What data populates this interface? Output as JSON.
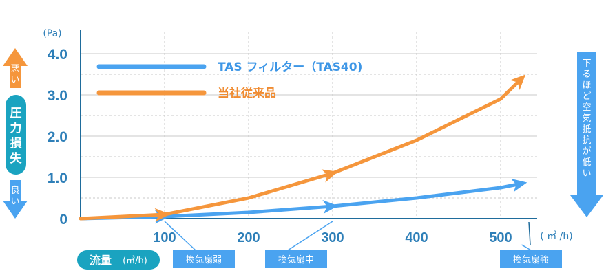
{
  "chart_data": {
    "type": "line",
    "x": [
      0,
      100,
      200,
      300,
      400,
      500,
      525
    ],
    "x_ticks": [
      "100",
      "200",
      "300",
      "400",
      "500"
    ],
    "y_ticks": [
      "0",
      "1.0",
      "2.0",
      "3.0",
      "4.0"
    ],
    "xlim": [
      0,
      525
    ],
    "ylim": [
      0,
      4.0
    ],
    "series": [
      {
        "name": "TAS フィルター（TAS40)",
        "color": "#4aa3f0",
        "values": [
          0,
          0.05,
          0.15,
          0.3,
          0.5,
          0.75,
          0.85
        ]
      },
      {
        "name": "当社従来品",
        "color": "#f5963c",
        "values": [
          0,
          0.1,
          0.5,
          1.1,
          1.9,
          2.9,
          3.4
        ]
      }
    ],
    "y_unit": "(Pa)",
    "x_unit": "( ㎥ /h)",
    "x_label": "流量",
    "x_label_unit": "(㎥/h)",
    "grid": true
  },
  "side_left": {
    "label": "圧力損失",
    "top_tag": "悪い",
    "bottom_tag": "良い",
    "color": "#f5963c",
    "pill_color": "#1aa3c0",
    "down_color": "#4aa3f0"
  },
  "side_right": {
    "label": "下るほど空気抵抗が低い",
    "color": "#4aa3f0"
  },
  "fan_tags": [
    {
      "label": "換気扇弱",
      "at": 100
    },
    {
      "label": "換気扇中",
      "at": 300
    },
    {
      "label": "換気扇強",
      "at": 525
    }
  ],
  "tag_color": "#4aa3f0",
  "axis_color": "#1f6c9c",
  "grid_color": "#c8c8c8"
}
